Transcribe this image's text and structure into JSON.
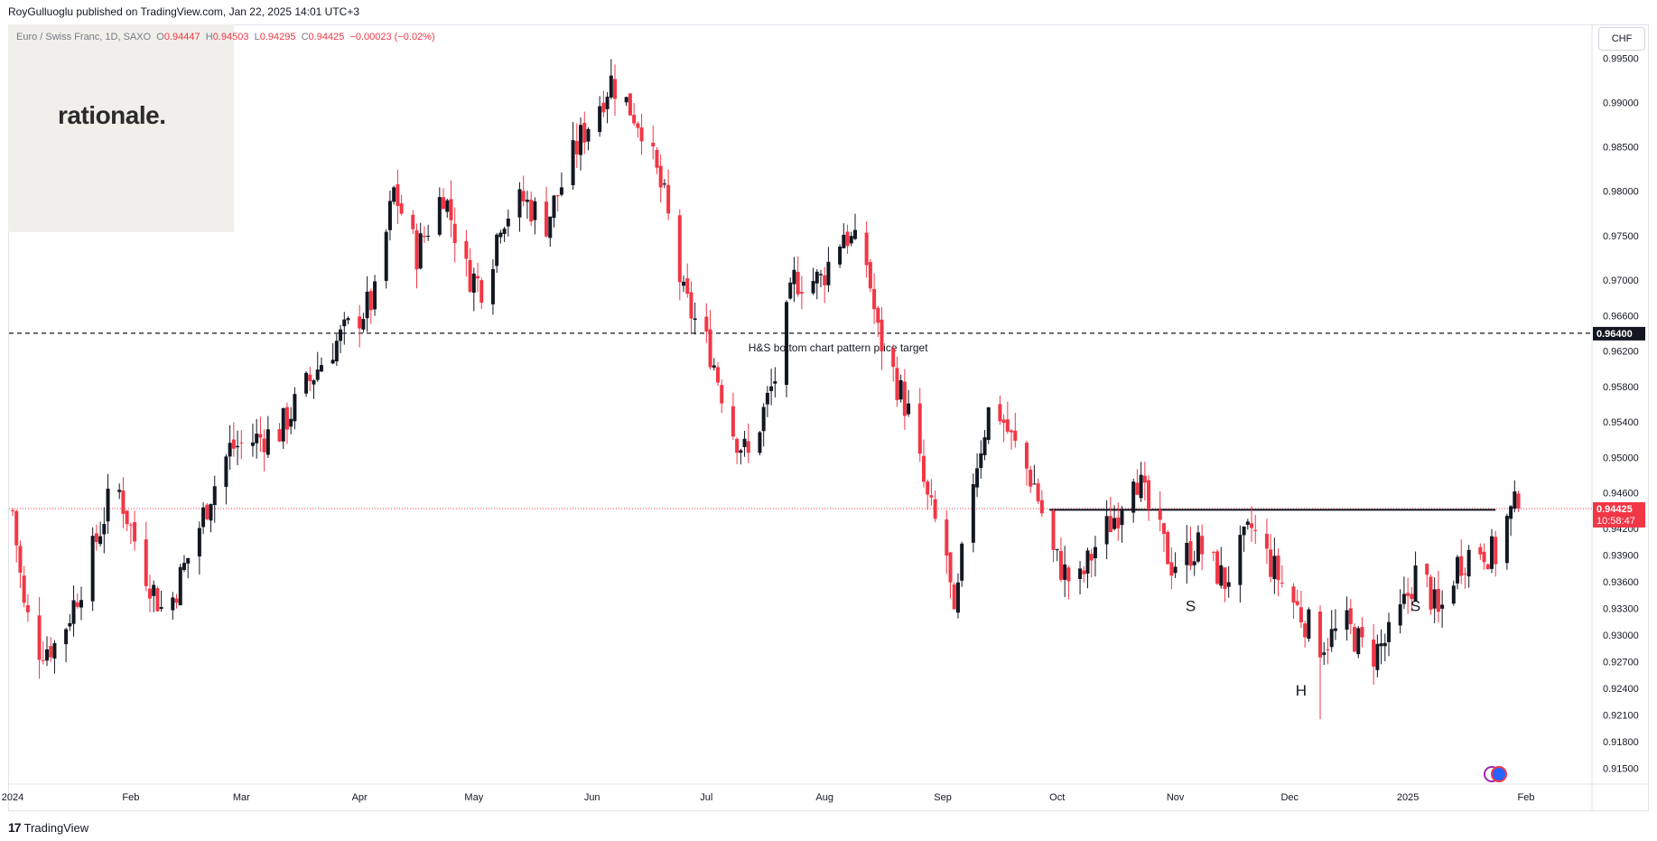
{
  "header": {
    "publisher": "RoyGulluoglu published on TradingView.com, Jan 22, 2025 14:01 UTC+3"
  },
  "legend": {
    "symbol": "Euro / Swiss Franc, 1D, SAXO",
    "open_label": "O",
    "open": "0.94447",
    "high_label": "H",
    "high": "0.94503",
    "low_label": "L",
    "low": "0.94295",
    "close_label": "C",
    "close": "0.94425",
    "change": "−0.00023 (−0.02%)"
  },
  "logo": {
    "text": "rationale."
  },
  "currency_button": {
    "label": "CHF"
  },
  "footer": {
    "brand": "TradingView",
    "icon": "tradingview-logo-icon"
  },
  "colors": {
    "up": "#131722",
    "down": "#f23645",
    "price_line": "#f23645",
    "target_line": "#131722",
    "neckline": "#131722"
  },
  "chart_data": {
    "type": "candlestick",
    "symbol": "Euro / Swiss Franc",
    "timeframe": "1D",
    "y_axis": {
      "side": "right",
      "range": [
        0.9132,
        0.9988
      ],
      "ticks": [
        "0.99500",
        "0.99000",
        "0.98500",
        "0.98000",
        "0.97500",
        "0.97000",
        "0.96600",
        "0.96200",
        "0.95800",
        "0.95400",
        "0.95000",
        "0.94600",
        "0.94200",
        "0.93900",
        "0.93600",
        "0.93300",
        "0.93000",
        "0.92700",
        "0.92400",
        "0.92100",
        "0.91800",
        "0.91500"
      ]
    },
    "x_axis": {
      "labels": [
        "2024",
        "Feb",
        "Mar",
        "Apr",
        "May",
        "Jun",
        "Jul",
        "Aug",
        "Sep",
        "Oct",
        "Nov",
        "Dec",
        "2025",
        "Feb"
      ],
      "label_days": [
        0,
        31,
        60,
        91,
        121,
        152,
        182,
        213,
        244,
        274,
        305,
        335,
        366,
        397
      ],
      "range_days": [
        0,
        397
      ]
    },
    "current_price": {
      "label": "0.94425",
      "value": 0.94425,
      "countdown": "10:58:47"
    },
    "target_line": {
      "value": 0.964,
      "label": "0.96400",
      "annotation": "H&S bottom chart pattern price target",
      "style": "dashed"
    },
    "neckline": {
      "value": 0.9441,
      "start_day": 272,
      "end_day": 389
    },
    "pattern_labels": [
      {
        "text": "S",
        "day": 309,
        "value": 0.9327
      },
      {
        "text": "H",
        "day": 338,
        "value": 0.9232
      },
      {
        "text": "S",
        "day": 368,
        "value": 0.9327
      }
    ],
    "anchors": [
      [
        0,
        0.944
      ],
      [
        3,
        0.933
      ],
      [
        7,
        0.9285
      ],
      [
        12,
        0.929
      ],
      [
        20,
        0.938
      ],
      [
        27,
        0.9475
      ],
      [
        34,
        0.938
      ],
      [
        40,
        0.932
      ],
      [
        48,
        0.941
      ],
      [
        52,
        0.946
      ],
      [
        57,
        0.951
      ],
      [
        70,
        0.953
      ],
      [
        82,
        0.9615
      ],
      [
        95,
        0.968
      ],
      [
        100,
        0.98
      ],
      [
        106,
        0.973
      ],
      [
        113,
        0.98
      ],
      [
        119,
        0.971
      ],
      [
        124,
        0.969
      ],
      [
        128,
        0.977
      ],
      [
        134,
        0.979
      ],
      [
        140,
        0.9765
      ],
      [
        149,
        0.986
      ],
      [
        157,
        0.9925
      ],
      [
        165,
        0.9875
      ],
      [
        171,
        0.979
      ],
      [
        176,
        0.968
      ],
      [
        183,
        0.962
      ],
      [
        189,
        0.953
      ],
      [
        193,
        0.95
      ],
      [
        200,
        0.959
      ],
      [
        205,
        0.97
      ],
      [
        212,
        0.97
      ],
      [
        218,
        0.9755
      ],
      [
        224,
        0.972
      ],
      [
        227,
        0.964
      ],
      [
        235,
        0.955
      ],
      [
        240,
        0.945
      ],
      [
        245,
        0.939
      ],
      [
        247,
        0.931
      ],
      [
        251,
        0.946
      ],
      [
        257,
        0.957
      ],
      [
        262,
        0.952
      ],
      [
        268,
        0.947
      ],
      [
        273,
        0.939
      ],
      [
        279,
        0.935
      ],
      [
        284,
        0.94
      ],
      [
        290,
        0.944
      ],
      [
        294,
        0.949
      ],
      [
        298,
        0.944
      ],
      [
        304,
        0.938
      ],
      [
        311,
        0.94
      ],
      [
        318,
        0.936
      ],
      [
        325,
        0.942
      ],
      [
        330,
        0.938
      ],
      [
        337,
        0.933
      ],
      [
        343,
        0.929
      ],
      [
        350,
        0.931
      ],
      [
        356,
        0.9275
      ],
      [
        362,
        0.93
      ],
      [
        369,
        0.938
      ],
      [
        374,
        0.932
      ],
      [
        379,
        0.938
      ],
      [
        384,
        0.94
      ],
      [
        389,
        0.939
      ],
      [
        392,
        0.943
      ],
      [
        394,
        0.9443
      ]
    ]
  }
}
